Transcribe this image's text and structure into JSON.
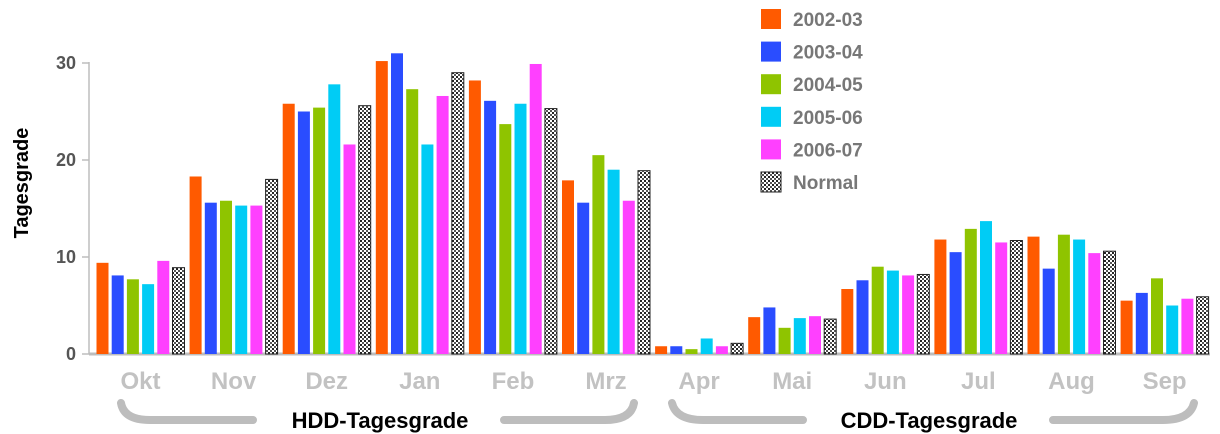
{
  "chart_data": {
    "type": "bar",
    "ylabel": "Tagesgrade",
    "ylim": [
      0,
      33
    ],
    "yticks": [
      "0",
      "10",
      "20",
      "30"
    ],
    "categories": [
      "Okt",
      "Nov",
      "Dez",
      "Jan",
      "Feb",
      "Mrz",
      "Apr",
      "Mai",
      "Jun",
      "Jul",
      "Aug",
      "Sep"
    ],
    "series": [
      {
        "name": "2002-03",
        "color": "#ff5a00",
        "values": [
          9.4,
          18.3,
          25.8,
          30.2,
          28.2,
          17.9,
          0.8,
          3.8,
          6.7,
          11.8,
          12.1,
          5.5
        ]
      },
      {
        "name": "2003-04",
        "color": "#2a4dff",
        "values": [
          8.1,
          15.6,
          25.0,
          31.0,
          26.1,
          15.6,
          0.8,
          4.8,
          7.6,
          10.5,
          8.8,
          6.3
        ]
      },
      {
        "name": "2004-05",
        "color": "#8fc400",
        "values": [
          7.7,
          15.8,
          25.4,
          27.3,
          23.7,
          20.5,
          0.5,
          2.7,
          9.0,
          12.9,
          12.3,
          7.8
        ]
      },
      {
        "name": "2005-06",
        "color": "#00ccf5",
        "values": [
          7.2,
          15.3,
          27.8,
          21.6,
          25.8,
          19.0,
          1.6,
          3.7,
          8.6,
          13.7,
          11.8,
          5.0
        ]
      },
      {
        "name": "2006-07",
        "color": "#ff40ff",
        "values": [
          9.6,
          15.3,
          21.6,
          26.6,
          29.9,
          15.8,
          0.8,
          3.9,
          8.1,
          11.5,
          10.4,
          5.7
        ]
      },
      {
        "name": "Normal",
        "color": "pattern",
        "values": [
          8.9,
          18.0,
          25.6,
          29.0,
          25.3,
          18.9,
          1.1,
          3.6,
          8.2,
          11.7,
          10.6,
          5.9
        ]
      }
    ],
    "groups": [
      {
        "label": "HDD-Tagesgrade",
        "months": [
          "Okt",
          "Mrz"
        ]
      },
      {
        "label": "CDD-Tagesgrade",
        "months": [
          "Apr",
          "Sep"
        ]
      }
    ],
    "legend": "top-right",
    "grid": false
  }
}
